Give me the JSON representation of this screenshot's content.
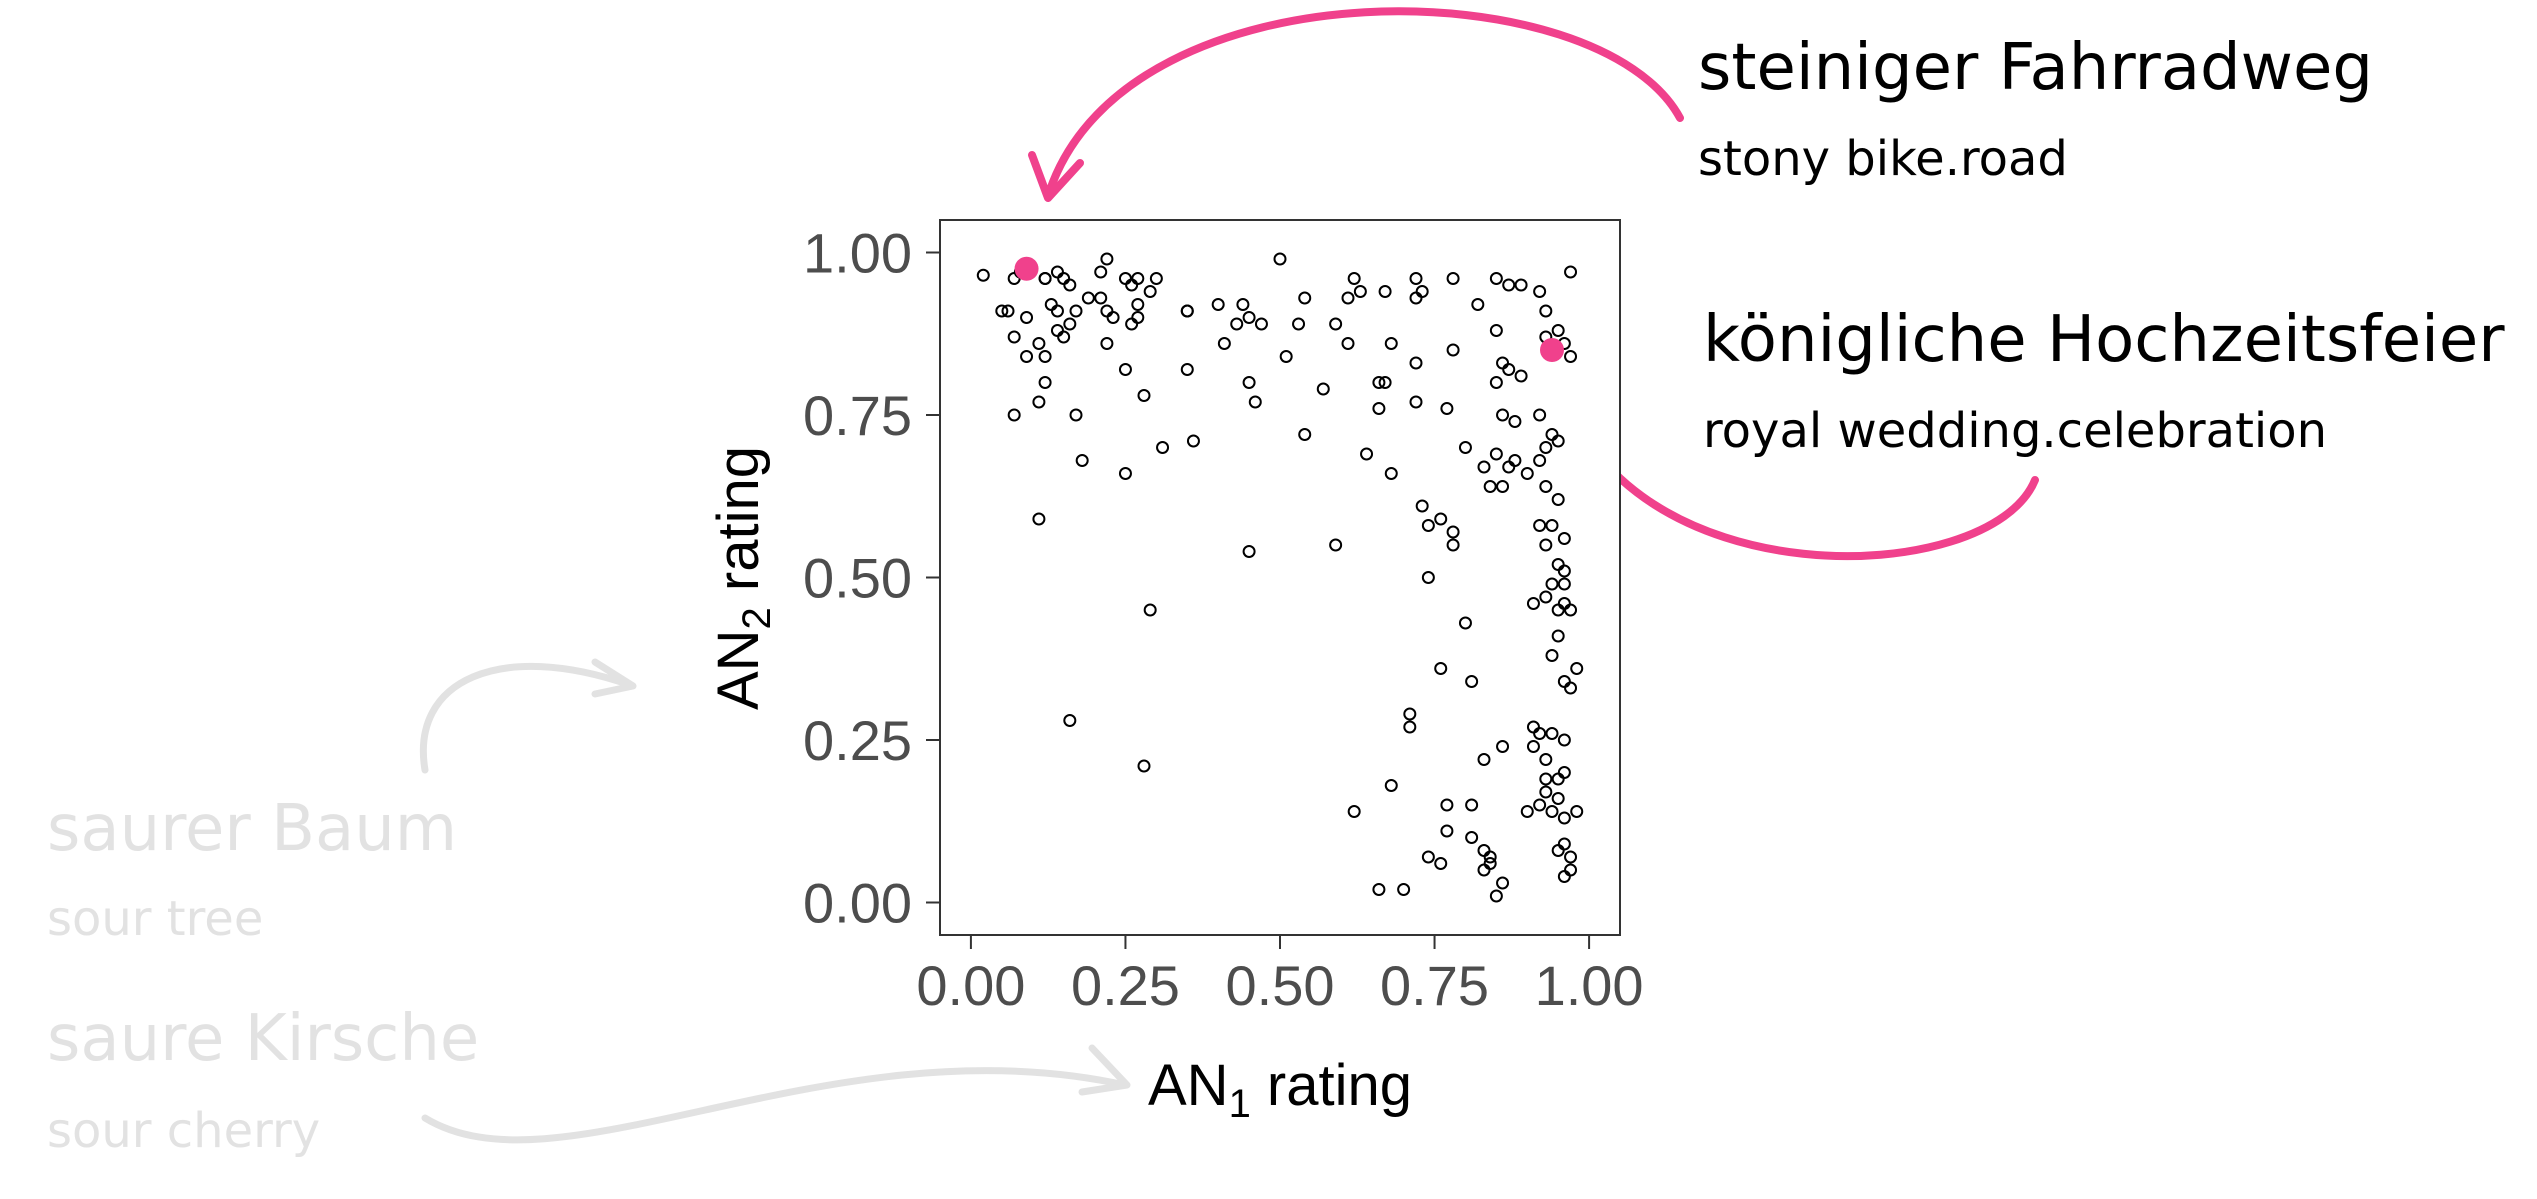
{
  "chart_data": {
    "type": "scatter",
    "xlabel": {
      "base": "AN",
      "sub": "1",
      "tail": " rating"
    },
    "ylabel": {
      "base": "AN",
      "sub": "2",
      "tail": " rating"
    },
    "xlim": [
      -0.05,
      1.05
    ],
    "ylim": [
      -0.05,
      1.05
    ],
    "xticks": [
      "0.00",
      "0.25",
      "0.50",
      "0.75",
      "1.00"
    ],
    "yticks": [
      "0.00",
      "0.25",
      "0.50",
      "0.75",
      "1.00"
    ],
    "grid": false,
    "points": [
      [
        0.02,
        0.965
      ],
      [
        0.05,
        0.91
      ],
      [
        0.06,
        0.91
      ],
      [
        0.07,
        0.96
      ],
      [
        0.08,
        0.97
      ],
      [
        0.07,
        0.87
      ],
      [
        0.09,
        0.9
      ],
      [
        0.07,
        0.75
      ],
      [
        0.09,
        0.84
      ],
      [
        0.12,
        0.96
      ],
      [
        0.12,
        0.96
      ],
      [
        0.14,
        0.97
      ],
      [
        0.15,
        0.96
      ],
      [
        0.16,
        0.95
      ],
      [
        0.13,
        0.92
      ],
      [
        0.14,
        0.91
      ],
      [
        0.17,
        0.91
      ],
      [
        0.19,
        0.93
      ],
      [
        0.11,
        0.86
      ],
      [
        0.12,
        0.84
      ],
      [
        0.14,
        0.88
      ],
      [
        0.15,
        0.87
      ],
      [
        0.16,
        0.89
      ],
      [
        0.12,
        0.8
      ],
      [
        0.11,
        0.77
      ],
      [
        0.17,
        0.75
      ],
      [
        0.18,
        0.68
      ],
      [
        0.11,
        0.59
      ],
      [
        0.16,
        0.28
      ],
      [
        0.22,
        0.99
      ],
      [
        0.21,
        0.97
      ],
      [
        0.25,
        0.96
      ],
      [
        0.26,
        0.95
      ],
      [
        0.27,
        0.96
      ],
      [
        0.3,
        0.96
      ],
      [
        0.21,
        0.93
      ],
      [
        0.22,
        0.91
      ],
      [
        0.23,
        0.9
      ],
      [
        0.27,
        0.92
      ],
      [
        0.29,
        0.94
      ],
      [
        0.26,
        0.89
      ],
      [
        0.27,
        0.9
      ],
      [
        0.22,
        0.86
      ],
      [
        0.25,
        0.82
      ],
      [
        0.28,
        0.78
      ],
      [
        0.31,
        0.7
      ],
      [
        0.25,
        0.66
      ],
      [
        0.29,
        0.45
      ],
      [
        0.28,
        0.21
      ],
      [
        0.35,
        0.91
      ],
      [
        0.35,
        0.91
      ],
      [
        0.4,
        0.92
      ],
      [
        0.44,
        0.92
      ],
      [
        0.45,
        0.9
      ],
      [
        0.47,
        0.89
      ],
      [
        0.43,
        0.89
      ],
      [
        0.41,
        0.86
      ],
      [
        0.35,
        0.82
      ],
      [
        0.36,
        0.71
      ],
      [
        0.45,
        0.8
      ],
      [
        0.46,
        0.77
      ],
      [
        0.45,
        0.54
      ],
      [
        0.5,
        0.99
      ],
      [
        0.54,
        0.93
      ],
      [
        0.53,
        0.89
      ],
      [
        0.51,
        0.84
      ],
      [
        0.59,
        0.89
      ],
      [
        0.61,
        0.93
      ],
      [
        0.62,
        0.96
      ],
      [
        0.63,
        0.94
      ],
      [
        0.67,
        0.94
      ],
      [
        0.72,
        0.96
      ],
      [
        0.73,
        0.94
      ],
      [
        0.72,
        0.93
      ],
      [
        0.78,
        0.96
      ],
      [
        0.61,
        0.86
      ],
      [
        0.68,
        0.86
      ],
      [
        0.72,
        0.83
      ],
      [
        0.78,
        0.85
      ],
      [
        0.57,
        0.79
      ],
      [
        0.66,
        0.8
      ],
      [
        0.67,
        0.8
      ],
      [
        0.66,
        0.76
      ],
      [
        0.72,
        0.77
      ],
      [
        0.77,
        0.76
      ],
      [
        0.54,
        0.72
      ],
      [
        0.59,
        0.55
      ],
      [
        0.64,
        0.69
      ],
      [
        0.68,
        0.66
      ],
      [
        0.73,
        0.61
      ],
      [
        0.74,
        0.58
      ],
      [
        0.76,
        0.59
      ],
      [
        0.78,
        0.57
      ],
      [
        0.78,
        0.55
      ],
      [
        0.74,
        0.5
      ],
      [
        0.8,
        0.7
      ],
      [
        0.83,
        0.67
      ],
      [
        0.85,
        0.69
      ],
      [
        0.86,
        0.64
      ],
      [
        0.84,
        0.64
      ],
      [
        0.82,
        0.92
      ],
      [
        0.85,
        0.96
      ],
      [
        0.87,
        0.95
      ],
      [
        0.89,
        0.95
      ],
      [
        0.92,
        0.94
      ],
      [
        0.93,
        0.91
      ],
      [
        0.85,
        0.88
      ],
      [
        0.93,
        0.87
      ],
      [
        0.95,
        0.88
      ],
      [
        0.96,
        0.86
      ],
      [
        0.97,
        0.84
      ],
      [
        0.86,
        0.83
      ],
      [
        0.87,
        0.82
      ],
      [
        0.89,
        0.81
      ],
      [
        0.85,
        0.8
      ],
      [
        0.92,
        0.75
      ],
      [
        0.86,
        0.75
      ],
      [
        0.88,
        0.74
      ],
      [
        0.94,
        0.72
      ],
      [
        0.95,
        0.71
      ],
      [
        0.93,
        0.7
      ],
      [
        0.88,
        0.68
      ],
      [
        0.87,
        0.67
      ],
      [
        0.9,
        0.66
      ],
      [
        0.92,
        0.68
      ],
      [
        0.93,
        0.64
      ],
      [
        0.95,
        0.62
      ],
      [
        0.94,
        0.58
      ],
      [
        0.96,
        0.56
      ],
      [
        0.92,
        0.58
      ],
      [
        0.93,
        0.55
      ],
      [
        0.95,
        0.52
      ],
      [
        0.96,
        0.51
      ],
      [
        0.94,
        0.49
      ],
      [
        0.96,
        0.49
      ],
      [
        0.91,
        0.46
      ],
      [
        0.93,
        0.47
      ],
      [
        0.95,
        0.45
      ],
      [
        0.97,
        0.45
      ],
      [
        0.96,
        0.46
      ],
      [
        0.95,
        0.41
      ],
      [
        0.94,
        0.38
      ],
      [
        0.98,
        0.36
      ],
      [
        0.96,
        0.34
      ],
      [
        0.97,
        0.33
      ],
      [
        0.8,
        0.43
      ],
      [
        0.76,
        0.36
      ],
      [
        0.81,
        0.34
      ],
      [
        0.71,
        0.29
      ],
      [
        0.71,
        0.27
      ],
      [
        0.91,
        0.27
      ],
      [
        0.92,
        0.26
      ],
      [
        0.94,
        0.26
      ],
      [
        0.96,
        0.25
      ],
      [
        0.91,
        0.24
      ],
      [
        0.93,
        0.22
      ],
      [
        0.86,
        0.24
      ],
      [
        0.83,
        0.22
      ],
      [
        0.96,
        0.2
      ],
      [
        0.93,
        0.19
      ],
      [
        0.95,
        0.19
      ],
      [
        0.93,
        0.17
      ],
      [
        0.95,
        0.16
      ],
      [
        0.92,
        0.15
      ],
      [
        0.94,
        0.14
      ],
      [
        0.96,
        0.13
      ],
      [
        0.98,
        0.14
      ],
      [
        0.9,
        0.14
      ],
      [
        0.68,
        0.18
      ],
      [
        0.62,
        0.14
      ],
      [
        0.77,
        0.15
      ],
      [
        0.81,
        0.15
      ],
      [
        0.74,
        0.07
      ],
      [
        0.77,
        0.11
      ],
      [
        0.81,
        0.1
      ],
      [
        0.83,
        0.08
      ],
      [
        0.84,
        0.07
      ],
      [
        0.84,
        0.06
      ],
      [
        0.76,
        0.06
      ],
      [
        0.83,
        0.05
      ],
      [
        0.86,
        0.03
      ],
      [
        0.85,
        0.01
      ],
      [
        0.95,
        0.08
      ],
      [
        0.96,
        0.09
      ],
      [
        0.97,
        0.07
      ],
      [
        0.97,
        0.05
      ],
      [
        0.96,
        0.04
      ],
      [
        0.66,
        0.02
      ],
      [
        0.7,
        0.02
      ],
      [
        0.97,
        0.97
      ]
    ],
    "highlighted_points": [
      {
        "x": 0.09,
        "y": 0.975
      },
      {
        "x": 0.94,
        "y": 0.85
      }
    ],
    "highlight_color": "#f0418c",
    "muted_color": "#e2e2e2"
  },
  "annotations": [
    {
      "de": "steiniger Fahrradweg",
      "en": "stony bike.road",
      "highlighted": true
    },
    {
      "de": "königliche Hochzeitsfeier",
      "en": "royal wedding.celebration",
      "highlighted": true
    },
    {
      "de": "saurer Baum",
      "en": "sour tree",
      "highlighted": false
    },
    {
      "de": "saure Kirsche",
      "en": "sour cherry",
      "highlighted": false
    }
  ]
}
